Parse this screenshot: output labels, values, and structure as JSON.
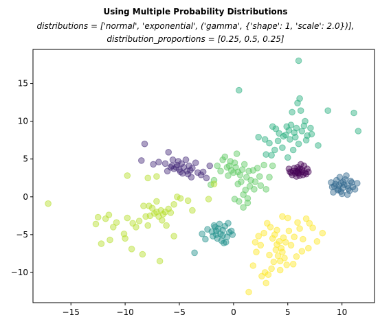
{
  "chart_data": {
    "type": "scatter",
    "title": "Using Multiple Probability Distributions",
    "subtitle_lines": [
      "distributions = ['normal', 'exponential', ('gamma', {'shape': 1, 'scale': 2.0})],",
      "distribution_proportions = [0.25, 0.5, 0.25]"
    ],
    "xlabel": "",
    "ylabel": "",
    "xlim": [
      -18.5,
      13
    ],
    "ylim": [
      -14,
      19.5
    ],
    "x_ticks": [
      -15,
      -10,
      -5,
      0,
      5,
      10
    ],
    "y_ticks": [
      -10,
      -5,
      0,
      5,
      10,
      15
    ],
    "x_tick_labels": [
      "−15",
      "−10",
      "−5",
      "0",
      "5",
      "10"
    ],
    "y_tick_labels": [
      "−10",
      "−5",
      "0",
      "5",
      "10",
      "15"
    ],
    "grid": false,
    "legend": "none",
    "marker_alpha": 0.45,
    "series": [
      {
        "color": "#440154",
        "points": [
          [
            5.2,
            3.3
          ],
          [
            5.6,
            3.8
          ],
          [
            6.0,
            3.1
          ],
          [
            6.3,
            3.6
          ],
          [
            6.6,
            3.2
          ],
          [
            5.8,
            3.4
          ],
          [
            6.1,
            2.8
          ],
          [
            6.8,
            3.7
          ],
          [
            5.4,
            2.9
          ],
          [
            6.5,
            4.1
          ],
          [
            5.9,
            3.9
          ],
          [
            6.9,
            3.3
          ],
          [
            5.1,
            3.7
          ],
          [
            6.2,
            4.3
          ],
          [
            5.7,
            3.1
          ],
          [
            6.4,
            2.9
          ],
          [
            6.0,
            3.5
          ],
          [
            5.5,
            3.4
          ],
          [
            6.7,
            3.0
          ],
          [
            5.3,
            3.2
          ],
          [
            6.1,
            3.7
          ],
          [
            5.8,
            2.7
          ],
          [
            6.3,
            3.3
          ],
          [
            5.9,
            3.2
          ]
        ]
      },
      {
        "color": "#472d7b",
        "points": [
          [
            -8.2,
            7.0
          ],
          [
            -8.5,
            4.8
          ],
          [
            -7.4,
            4.3
          ],
          [
            -6.9,
            4.6
          ],
          [
            -6.3,
            4.4
          ],
          [
            -6.0,
            5.9
          ],
          [
            -5.7,
            4.1
          ],
          [
            -5.5,
            3.7
          ],
          [
            -5.2,
            4.2
          ],
          [
            -5.0,
            3.6
          ],
          [
            -4.8,
            4.4
          ],
          [
            -4.6,
            3.9
          ],
          [
            -4.3,
            3.4
          ],
          [
            -4.1,
            4.1
          ],
          [
            -3.8,
            3.8
          ],
          [
            -3.5,
            4.5
          ],
          [
            -3.3,
            3.2
          ],
          [
            -3.0,
            2.9
          ],
          [
            -3.9,
            2.6
          ],
          [
            -4.7,
            3.1
          ],
          [
            -5.3,
            3.9
          ],
          [
            -5.1,
            4.7
          ],
          [
            -4.9,
            3.3
          ],
          [
            -4.4,
            4.9
          ],
          [
            -5.8,
            3.9
          ],
          [
            -6.1,
            3.4
          ],
          [
            -4.2,
            3.0
          ],
          [
            -5.6,
            4.9
          ],
          [
            -2.8,
            3.3
          ],
          [
            -2.5,
            2.5
          ],
          [
            -2.2,
            4.1
          ],
          [
            -4.0,
            3.5
          ]
        ]
      },
      {
        "color": "#31688e",
        "points": [
          [
            9.0,
            1.9
          ],
          [
            9.3,
            1.4
          ],
          [
            9.5,
            2.2
          ],
          [
            9.7,
            1.0
          ],
          [
            9.9,
            1.8
          ],
          [
            10.1,
            1.2
          ],
          [
            10.3,
            2.3
          ],
          [
            10.5,
            1.5
          ],
          [
            10.7,
            0.8
          ],
          [
            10.9,
            1.9
          ],
          [
            9.2,
            0.6
          ],
          [
            9.8,
            2.6
          ],
          [
            10.0,
            0.4
          ],
          [
            10.4,
            2.8
          ],
          [
            10.6,
            1.1
          ],
          [
            11.0,
            1.3
          ],
          [
            9.4,
            1.7
          ],
          [
            9.6,
            0.9
          ],
          [
            10.2,
            1.6
          ],
          [
            10.8,
            2.1
          ],
          [
            9.1,
            1.3
          ],
          [
            11.2,
            1.0
          ],
          [
            10.1,
            2.0
          ],
          [
            9.7,
            1.5
          ],
          [
            10.5,
            0.3
          ],
          [
            11.4,
            1.8
          ],
          [
            9.9,
            0.7
          ]
        ]
      },
      {
        "color": "#21918c",
        "points": [
          [
            -2.4,
            -4.3
          ],
          [
            -2.0,
            -4.6
          ],
          [
            -1.8,
            -3.8
          ],
          [
            -1.6,
            -5.0
          ],
          [
            -1.4,
            -4.2
          ],
          [
            -1.2,
            -4.9
          ],
          [
            -1.0,
            -4.4
          ],
          [
            -0.8,
            -3.9
          ],
          [
            -0.6,
            -5.3
          ],
          [
            -0.4,
            -4.7
          ],
          [
            -1.5,
            -5.5
          ],
          [
            -1.9,
            -5.2
          ],
          [
            -1.1,
            -5.8
          ],
          [
            -0.7,
            -6.0
          ],
          [
            -0.2,
            -4.5
          ],
          [
            -2.6,
            -5.6
          ],
          [
            -2.9,
            -4.9
          ],
          [
            -0.9,
            -6.1
          ],
          [
            -1.3,
            -3.6
          ],
          [
            -1.7,
            -4.0
          ],
          [
            -0.5,
            -3.5
          ],
          [
            -3.6,
            -7.4
          ],
          [
            -0.1,
            -5.0
          ],
          [
            -1.0,
            -5.1
          ],
          [
            -1.6,
            -4.5
          ]
        ]
      },
      {
        "color": "#29af7f",
        "points": [
          [
            0.5,
            14.1
          ],
          [
            5.4,
            11.2
          ],
          [
            5.9,
            12.4
          ],
          [
            6.1,
            13.0
          ],
          [
            6.0,
            18.0
          ],
          [
            6.2,
            11.4
          ],
          [
            8.7,
            11.4
          ],
          [
            11.1,
            11.1
          ],
          [
            11.5,
            8.7
          ],
          [
            6.6,
            10.0
          ],
          [
            4.9,
            9.3
          ],
          [
            5.1,
            8.8
          ],
          [
            5.3,
            9.5
          ],
          [
            5.6,
            8.5
          ],
          [
            5.8,
            9.1
          ],
          [
            6.3,
            8.7
          ],
          [
            6.5,
            9.4
          ],
          [
            6.8,
            8.1
          ],
          [
            7.2,
            8.3
          ],
          [
            7.8,
            6.8
          ],
          [
            4.6,
            8.0
          ],
          [
            4.2,
            8.4
          ],
          [
            3.9,
            9.0
          ],
          [
            3.6,
            9.3
          ],
          [
            3.3,
            7.1
          ],
          [
            2.9,
            7.6
          ],
          [
            3.0,
            5.6
          ],
          [
            3.8,
            6.2
          ],
          [
            4.5,
            6.5
          ],
          [
            5.0,
            5.2
          ],
          [
            5.5,
            6.2
          ],
          [
            6.0,
            7.0
          ],
          [
            6.7,
            7.5
          ],
          [
            7.1,
            9.1
          ],
          [
            4.8,
            8.2
          ],
          [
            5.2,
            7.6
          ],
          [
            2.3,
            7.9
          ],
          [
            3.5,
            5.5
          ],
          [
            4.1,
            7.4
          ],
          [
            5.7,
            7.9
          ]
        ]
      },
      {
        "color": "#5ec962",
        "points": [
          [
            -1.5,
            4.1
          ],
          [
            -1.2,
            3.4
          ],
          [
            -1.0,
            4.9
          ],
          [
            -0.8,
            5.3
          ],
          [
            -0.6,
            3.9
          ],
          [
            -0.4,
            4.1
          ],
          [
            -0.2,
            3.5
          ],
          [
            0.0,
            3.2
          ],
          [
            0.2,
            3.9
          ],
          [
            0.4,
            3.3
          ],
          [
            0.6,
            2.9
          ],
          [
            0.8,
            3.6
          ],
          [
            1.0,
            4.3
          ],
          [
            1.2,
            2.6
          ],
          [
            1.4,
            3.4
          ],
          [
            1.6,
            2.2
          ],
          [
            1.8,
            3.5
          ],
          [
            2.0,
            2.0
          ],
          [
            2.2,
            3.8
          ],
          [
            2.5,
            1.5
          ],
          [
            2.8,
            4.2
          ],
          [
            3.0,
            1.0
          ],
          [
            3.3,
            2.6
          ],
          [
            0.1,
            4.5
          ],
          [
            0.3,
            5.7
          ],
          [
            -0.5,
            2.8
          ],
          [
            -1.8,
            2.2
          ],
          [
            -2.1,
            1.6
          ],
          [
            0.7,
            2.0
          ],
          [
            1.1,
            0.9
          ],
          [
            1.5,
            1.4
          ],
          [
            1.9,
            1.0
          ],
          [
            0.9,
            0.3
          ],
          [
            1.3,
            -0.2
          ],
          [
            0.5,
            -0.6
          ],
          [
            0.9,
            -1.4
          ],
          [
            1.3,
            -0.8
          ],
          [
            0.1,
            -0.3
          ],
          [
            2.4,
            2.7
          ],
          [
            3.6,
            4.1
          ],
          [
            -0.3,
            4.7
          ],
          [
            0.4,
            1.7
          ]
        ]
      },
      {
        "color": "#b5de2b",
        "points": [
          [
            -17.1,
            -0.9
          ],
          [
            -11.8,
            -2.9
          ],
          [
            -12.7,
            -3.6
          ],
          [
            -12.2,
            -6.2
          ],
          [
            -11.4,
            -5.7
          ],
          [
            -11.1,
            -4.0
          ],
          [
            -10.8,
            -3.4
          ],
          [
            -10.1,
            -4.9
          ],
          [
            -10.0,
            -5.5
          ],
          [
            -9.8,
            -2.8
          ],
          [
            -9.4,
            -6.9
          ],
          [
            -9.3,
            -3.5
          ],
          [
            -9.0,
            -4.0
          ],
          [
            -8.7,
            -3.2
          ],
          [
            -8.4,
            -7.6
          ],
          [
            -8.1,
            -2.6
          ],
          [
            -7.9,
            -3.8
          ],
          [
            -7.7,
            -2.5
          ],
          [
            -7.5,
            -1.5
          ],
          [
            -7.3,
            -2.2
          ],
          [
            -7.1,
            -2.0
          ],
          [
            -6.9,
            -2.6
          ],
          [
            -6.7,
            -1.8
          ],
          [
            -6.5,
            -2.3
          ],
          [
            -6.3,
            -2.0
          ],
          [
            -6.0,
            -1.6
          ],
          [
            -5.8,
            -2.1
          ],
          [
            -5.5,
            -1.0
          ],
          [
            -5.2,
            0.0
          ],
          [
            -4.9,
            -0.2
          ],
          [
            -6.8,
            -8.5
          ],
          [
            -6.2,
            -3.8
          ],
          [
            -5.5,
            -5.2
          ],
          [
            -7.8,
            -1.2
          ],
          [
            -7.1,
            -0.6
          ],
          [
            -6.6,
            -3.1
          ],
          [
            -9.8,
            2.8
          ],
          [
            -7.9,
            2.5
          ],
          [
            -7.1,
            2.7
          ],
          [
            -4.2,
            -0.5
          ],
          [
            -3.8,
            -1.8
          ],
          [
            -2.3,
            -0.3
          ],
          [
            -1.8,
            1.7
          ],
          [
            -12.5,
            -2.7
          ],
          [
            -11.5,
            -2.4
          ],
          [
            -8.3,
            -1.2
          ]
        ]
      },
      {
        "color": "#fde725",
        "points": [
          [
            3.4,
            -4.0
          ],
          [
            3.6,
            -5.5
          ],
          [
            3.8,
            -5.0
          ],
          [
            3.9,
            -7.0
          ],
          [
            4.0,
            -6.3
          ],
          [
            4.1,
            -7.8
          ],
          [
            4.2,
            -5.9
          ],
          [
            4.3,
            -8.5
          ],
          [
            4.4,
            -6.8
          ],
          [
            4.5,
            -7.3
          ],
          [
            4.6,
            -5.4
          ],
          [
            4.7,
            -8.1
          ],
          [
            4.8,
            -6.0
          ],
          [
            4.9,
            -9.0
          ],
          [
            3.5,
            -9.5
          ],
          [
            3.2,
            -10.3
          ],
          [
            2.9,
            -10.0
          ],
          [
            3.0,
            -11.4
          ],
          [
            2.6,
            -10.5
          ],
          [
            1.8,
            -9.1
          ],
          [
            1.4,
            -12.6
          ],
          [
            2.1,
            -7.3
          ],
          [
            2.5,
            -6.4
          ],
          [
            2.8,
            -4.8
          ],
          [
            3.1,
            -3.5
          ],
          [
            5.1,
            -4.5
          ],
          [
            5.3,
            -6.4
          ],
          [
            5.6,
            -5.3
          ],
          [
            5.8,
            -7.9
          ],
          [
            6.1,
            -4.2
          ],
          [
            6.4,
            -5.6
          ],
          [
            6.7,
            -2.9
          ],
          [
            6.9,
            -6.8
          ],
          [
            7.3,
            -4.1
          ],
          [
            7.7,
            -5.9
          ],
          [
            8.2,
            -4.8
          ],
          [
            7.0,
            -3.5
          ],
          [
            4.5,
            -2.6
          ],
          [
            5.0,
            -2.8
          ],
          [
            2.0,
            -6.0
          ],
          [
            5.9,
            -3.4
          ],
          [
            4.3,
            -9.7
          ],
          [
            3.7,
            -8.6
          ],
          [
            5.5,
            -8.9
          ],
          [
            4.0,
            -4.4
          ],
          [
            6.3,
            -7.2
          ],
          [
            3.3,
            -7.7
          ],
          [
            2.3,
            -5.2
          ]
        ]
      }
    ]
  }
}
